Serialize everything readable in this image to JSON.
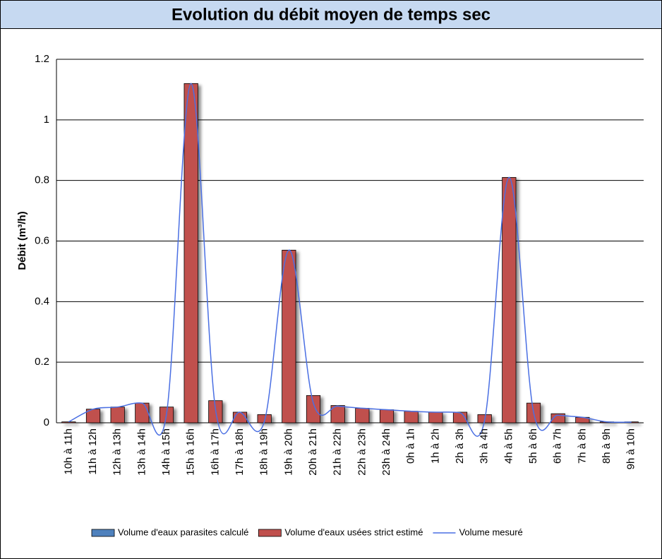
{
  "chart_data": {
    "type": "bar",
    "title": "Evolution du débit moyen de temps sec",
    "y_label": "Débit (m³/h)",
    "categories": [
      "10h à 11h",
      "11h à 12h",
      "12h à 13h",
      "13h à 14h",
      "14h à 15h",
      "15h à 16h",
      "16h à 17h",
      "17h à 18h",
      "18h à 19h",
      "19h à 20h",
      "20h à 21h",
      "21h à 22h",
      "22h à 23h",
      "23h à 24h",
      "0h à 1h",
      "1h à 2h",
      "2h à 3h",
      "3h à 4h",
      "4h à 5h",
      "5h à 6h",
      "6h à 7h",
      "7h à 8h",
      "8h à 9h",
      "9h à 10h"
    ],
    "series": [
      {
        "name": "Volume d'eaux parasites calculé",
        "color": "#4f81bd",
        "kind": "bar",
        "values": [
          0,
          0,
          0,
          0,
          0,
          0,
          0,
          0,
          0,
          0,
          0,
          0,
          0,
          0,
          0,
          0,
          0,
          0,
          0,
          0,
          0,
          0,
          0,
          0
        ]
      },
      {
        "name": "Volume d'eaux usées strict estimé",
        "color": "#c0504d",
        "kind": "bar",
        "values": [
          0.003,
          0.045,
          0.052,
          0.065,
          0.052,
          1.12,
          0.073,
          0.035,
          0.027,
          0.57,
          0.09,
          0.057,
          0.048,
          0.043,
          0.038,
          0.035,
          0.035,
          0.027,
          0.81,
          0.065,
          0.03,
          0.018,
          0.003,
          0.003
        ]
      },
      {
        "name": "Volume mesuré",
        "color": "#4a6fe3",
        "kind": "line",
        "values": [
          0.003,
          0.045,
          0.052,
          0.065,
          0.03,
          1.12,
          0.045,
          0.035,
          0.005,
          0.57,
          0.065,
          0.055,
          0.048,
          0.043,
          0.038,
          0.035,
          0.033,
          0.008,
          0.81,
          0.035,
          0.025,
          0.018,
          0.003,
          0.002
        ]
      }
    ],
    "ylim": [
      0,
      1.2
    ],
    "yticks": [
      0,
      0.2,
      0.4,
      0.6,
      0.8,
      1,
      1.2
    ],
    "grid": true,
    "legend": "bottom"
  }
}
